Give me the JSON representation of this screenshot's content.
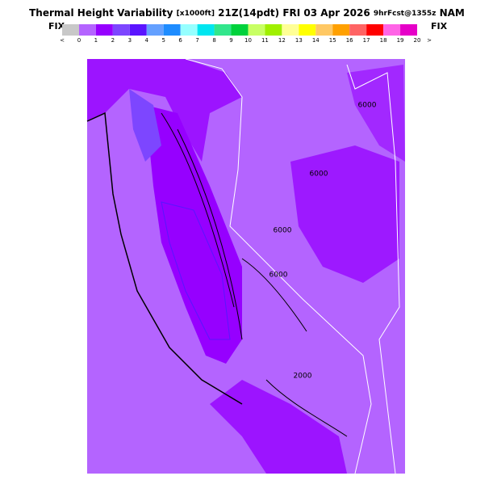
{
  "header": {
    "title_parts": [
      "Thermal Height Variability",
      "[x1000ft]",
      "21Z(14pdt)",
      "FRI 03 Apr 2026",
      "9hrFcst@1355z",
      "NAM"
    ]
  },
  "colorbar": {
    "left_label": "FIX",
    "right_label": "FIX",
    "under_label": "<",
    "over_label": ">",
    "tick_labels": [
      "0",
      "1",
      "2",
      "3",
      "4",
      "5",
      "6",
      "7",
      "8",
      "9",
      "10",
      "11",
      "12",
      "13",
      "14",
      "15",
      "16",
      "17",
      "18",
      "19",
      "20"
    ],
    "colors": [
      "#c8c8c8",
      "#b464ff",
      "#9600ff",
      "#7d46ff",
      "#5a14ff",
      "#64a0ff",
      "#1e8cff",
      "#96ffff",
      "#00e6f0",
      "#32e68c",
      "#00d23c",
      "#c8ff64",
      "#a0f000",
      "#ffff96",
      "#ffff00",
      "#ffc864",
      "#ffa000",
      "#ff6464",
      "#ff0000",
      "#ff64e6",
      "#e600c8"
    ]
  },
  "map": {
    "contour_labels": [
      "6000",
      "6000",
      "6000",
      "6000",
      "2000"
    ]
  }
}
